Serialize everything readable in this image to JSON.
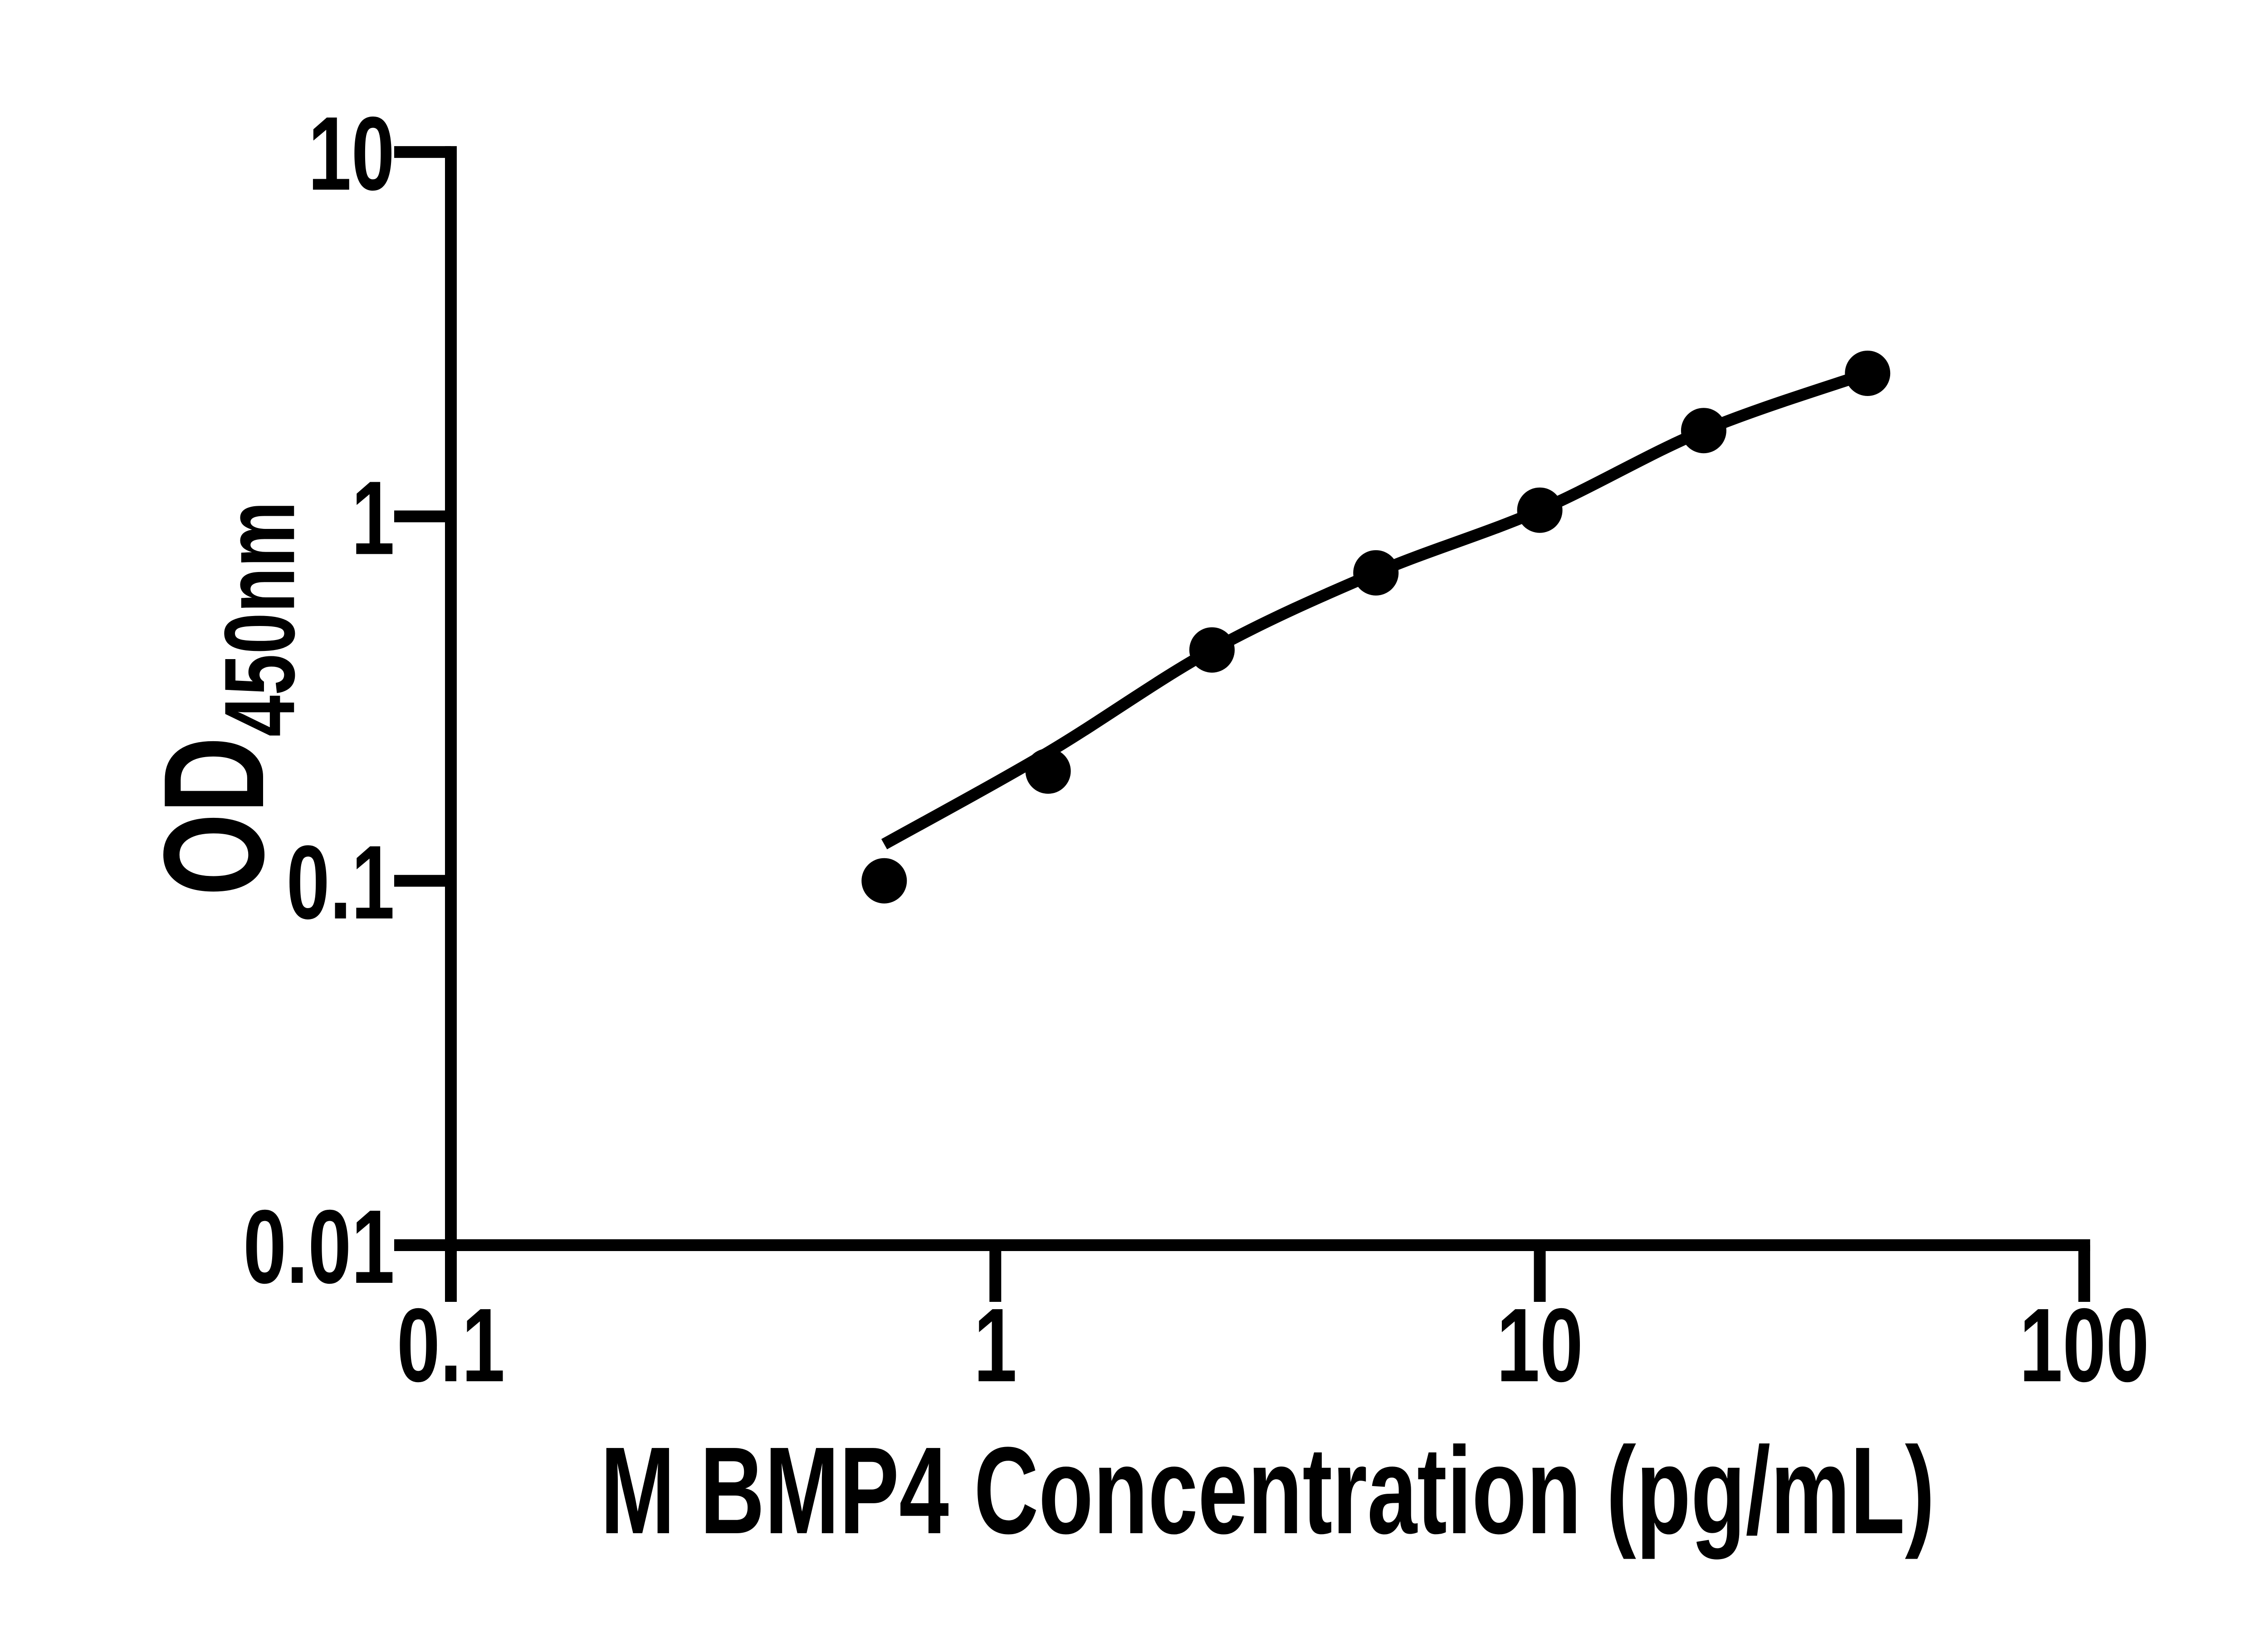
{
  "figure": {
    "background_color": "#ffffff",
    "ink_color": "#000000"
  },
  "chart_data": {
    "type": "scatter",
    "title": "",
    "xlabel": "M BMP4 Concentration (pg/mL)",
    "ylabel": "OD450nm",
    "ylabel_main": "OD",
    "ylabel_subscript": "450nm",
    "x_scale": "log10",
    "y_scale": "log10",
    "xlim": [
      0.1,
      100
    ],
    "ylim": [
      0.01,
      10
    ],
    "grid": false,
    "legend": "none",
    "x_ticks": [
      {
        "value": 0.1,
        "label": "0.1"
      },
      {
        "value": 1,
        "label": "1"
      },
      {
        "value": 10,
        "label": "10"
      },
      {
        "value": 100,
        "label": "100"
      }
    ],
    "y_ticks": [
      {
        "value": 0.01,
        "label": "0.01"
      },
      {
        "value": 0.1,
        "label": "0.1"
      },
      {
        "value": 1,
        "label": "1"
      },
      {
        "value": 10,
        "label": "10"
      }
    ],
    "series": [
      {
        "name": "standard-curve-points",
        "marker": "circle",
        "marker_color": "#000000",
        "points": [
          {
            "x": 0.625,
            "y": 0.1
          },
          {
            "x": 1.25,
            "y": 0.2
          },
          {
            "x": 2.5,
            "y": 0.43
          },
          {
            "x": 5,
            "y": 0.7
          },
          {
            "x": 10,
            "y": 1.04
          },
          {
            "x": 20,
            "y": 1.72
          },
          {
            "x": 40,
            "y": 2.47
          }
        ]
      }
    ],
    "fit_curve": {
      "name": "fitted-curve",
      "color": "#000000",
      "points": [
        {
          "x": 0.625,
          "y": 0.126
        },
        {
          "x": 1.25,
          "y": 0.225
        },
        {
          "x": 2.5,
          "y": 0.43
        },
        {
          "x": 5,
          "y": 0.7
        },
        {
          "x": 10,
          "y": 1.04
        },
        {
          "x": 20,
          "y": 1.72
        },
        {
          "x": 40,
          "y": 2.47
        }
      ]
    }
  }
}
